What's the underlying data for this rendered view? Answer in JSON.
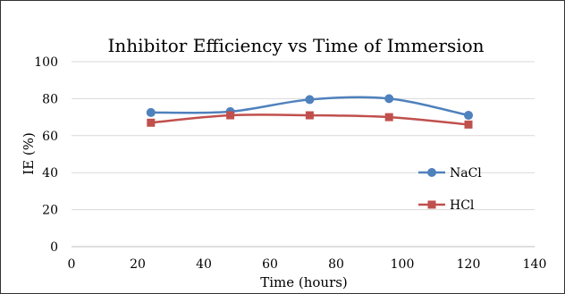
{
  "chart_data": {
    "type": "line",
    "title": "Inhibitor Efficiency vs Time of Immersion",
    "xlabel": "Time (hours)",
    "ylabel": "IE (%)",
    "xlim": [
      0,
      140
    ],
    "ylim": [
      0,
      100
    ],
    "x_ticks": [
      0,
      20,
      40,
      60,
      80,
      100,
      120,
      140
    ],
    "y_ticks": [
      0,
      20,
      40,
      60,
      80,
      100
    ],
    "grid": "horizontal",
    "legend_position": "right",
    "smooth": true,
    "x": [
      24,
      48,
      72,
      96,
      120
    ],
    "series": [
      {
        "name": "NaCl",
        "values": [
          72.5,
          73,
          79.5,
          80,
          71
        ],
        "color": "#4f81bd",
        "marker": "circle"
      },
      {
        "name": "HCl",
        "values": [
          67,
          71,
          71,
          70,
          66
        ],
        "color": "#c0504d",
        "marker": "square"
      }
    ]
  }
}
